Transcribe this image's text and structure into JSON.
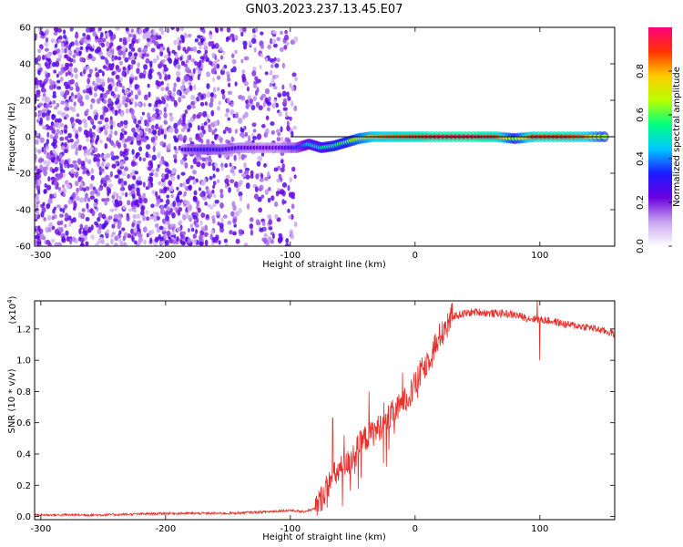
{
  "figure_title": "GN03.2023.237.13.45.E07",
  "chart_data": [
    {
      "type": "heatmap",
      "xlabel": "Height of straight line (km)",
      "ylabel": "Frequency (Hz)",
      "xlim": [
        -305,
        160
      ],
      "ylim": [
        -60,
        60
      ],
      "xticks": [
        -300,
        -200,
        -100,
        0,
        100
      ],
      "xtick_labels": [
        "-300",
        "-200",
        "-100",
        "0",
        "100"
      ],
      "yticks": [
        -60,
        -40,
        -20,
        0,
        20,
        40,
        60
      ],
      "ytick_labels": [
        "-60",
        "-40",
        "-20",
        "0",
        "20",
        "40",
        "60"
      ],
      "colorbar": {
        "label": "Normalized spectral amplitude",
        "range": [
          0,
          1
        ],
        "ticks": [
          0.0,
          0.2,
          0.4,
          0.6,
          0.8
        ],
        "tick_labels": [
          "0.0",
          "0.2",
          "0.4",
          "0.6",
          "0.8"
        ],
        "colormap": [
          "#ffffff",
          "#c7a4f0",
          "#6a00e0",
          "#1b1bff",
          "#00c8ff",
          "#00ff80",
          "#b8ff00",
          "#ffcc00",
          "#ff3300",
          "#ff0080"
        ]
      },
      "reference_line": {
        "y": 0,
        "x_from": -100,
        "x_to": 160
      },
      "noise_region": {
        "x_from": -305,
        "x_to": -95,
        "amplitude": 0.15
      },
      "signal_track": [
        {
          "x": -185,
          "y": -7,
          "amplitude": 0.25
        },
        {
          "x": -170,
          "y": -7,
          "amplitude": 0.3
        },
        {
          "x": -155,
          "y": -7,
          "amplitude": 0.28
        },
        {
          "x": -140,
          "y": -6,
          "amplitude": 0.25
        },
        {
          "x": -125,
          "y": -6,
          "amplitude": 0.22
        },
        {
          "x": -110,
          "y": -6,
          "amplitude": 0.22
        },
        {
          "x": -95,
          "y": -6,
          "amplitude": 0.3
        },
        {
          "x": -85,
          "y": -4,
          "amplitude": 0.45
        },
        {
          "x": -75,
          "y": -6,
          "amplitude": 0.5
        },
        {
          "x": -65,
          "y": -5,
          "amplitude": 0.55
        },
        {
          "x": -55,
          "y": -3,
          "amplitude": 0.6
        },
        {
          "x": -45,
          "y": -1,
          "amplitude": 0.7
        },
        {
          "x": -35,
          "y": 0,
          "amplitude": 0.8
        },
        {
          "x": -20,
          "y": 0,
          "amplitude": 0.85
        },
        {
          "x": -5,
          "y": 0,
          "amplitude": 0.88
        },
        {
          "x": 10,
          "y": 0,
          "amplitude": 0.92
        },
        {
          "x": 30,
          "y": 0,
          "amplitude": 0.95
        },
        {
          "x": 50,
          "y": 0,
          "amplitude": 0.95
        },
        {
          "x": 65,
          "y": 0,
          "amplitude": 0.9
        },
        {
          "x": 80,
          "y": -1,
          "amplitude": 0.6
        },
        {
          "x": 95,
          "y": 0,
          "amplitude": 0.9
        },
        {
          "x": 115,
          "y": 0,
          "amplitude": 0.9
        },
        {
          "x": 135,
          "y": 0,
          "amplitude": 0.85
        },
        {
          "x": 155,
          "y": 0,
          "amplitude": 0.6
        }
      ]
    },
    {
      "type": "line",
      "xlabel": "Height of straight line (km)",
      "ylabel": "SNR (10 * v/v)",
      "y_scale_label": "(x10",
      "y_scale_exponent": "4",
      "y_scale_close": ")",
      "xlim": [
        -305,
        160
      ],
      "ylim": [
        -0.02,
        1.38
      ],
      "xticks": [
        -300,
        -200,
        -100,
        0,
        100
      ],
      "xtick_labels": [
        "-300",
        "-200",
        "-100",
        "0",
        "100"
      ],
      "yticks": [
        0.0,
        0.2,
        0.4,
        0.6,
        0.8,
        1.0,
        1.2
      ],
      "ytick_labels": [
        "0.0",
        "0.2",
        "0.4",
        "0.6",
        "0.8",
        "1.0",
        "1.2"
      ],
      "line_color": "#e8302c",
      "series": [
        {
          "x": [
            -305,
            -250,
            -200,
            -150,
            -120,
            -100,
            -90,
            -80,
            -75,
            -70,
            -65,
            -60,
            -55,
            -50,
            -45,
            -40,
            -35,
            -30,
            -25,
            -20,
            -15,
            -10,
            -5,
            0,
            5,
            10,
            15,
            20,
            25,
            30,
            40,
            50,
            60,
            70,
            80,
            90,
            100,
            110,
            120,
            130,
            140,
            150,
            160
          ],
          "values": [
            0.01,
            0.01,
            0.02,
            0.02,
            0.03,
            0.04,
            0.03,
            0.05,
            0.12,
            0.2,
            0.26,
            0.3,
            0.33,
            0.38,
            0.45,
            0.5,
            0.53,
            0.56,
            0.6,
            0.64,
            0.68,
            0.72,
            0.78,
            0.84,
            0.92,
            1.0,
            1.08,
            1.16,
            1.24,
            1.28,
            1.3,
            1.31,
            1.3,
            1.3,
            1.29,
            1.27,
            1.26,
            1.25,
            1.23,
            1.22,
            1.21,
            1.19,
            1.17
          ]
        }
      ],
      "spikes": [
        {
          "x": -66,
          "y": 0.63
        },
        {
          "x": -57,
          "y": 0.52
        },
        {
          "x": -37,
          "y": 0.8
        },
        {
          "x": -25,
          "y": 0.73
        },
        {
          "x": -10,
          "y": 0.92
        },
        {
          "x": 4,
          "y": 1.0
        },
        {
          "x": 25,
          "y": 1.2
        },
        {
          "x": 98,
          "y": 1.4
        },
        {
          "x": 100,
          "y": 1.0
        }
      ]
    }
  ]
}
